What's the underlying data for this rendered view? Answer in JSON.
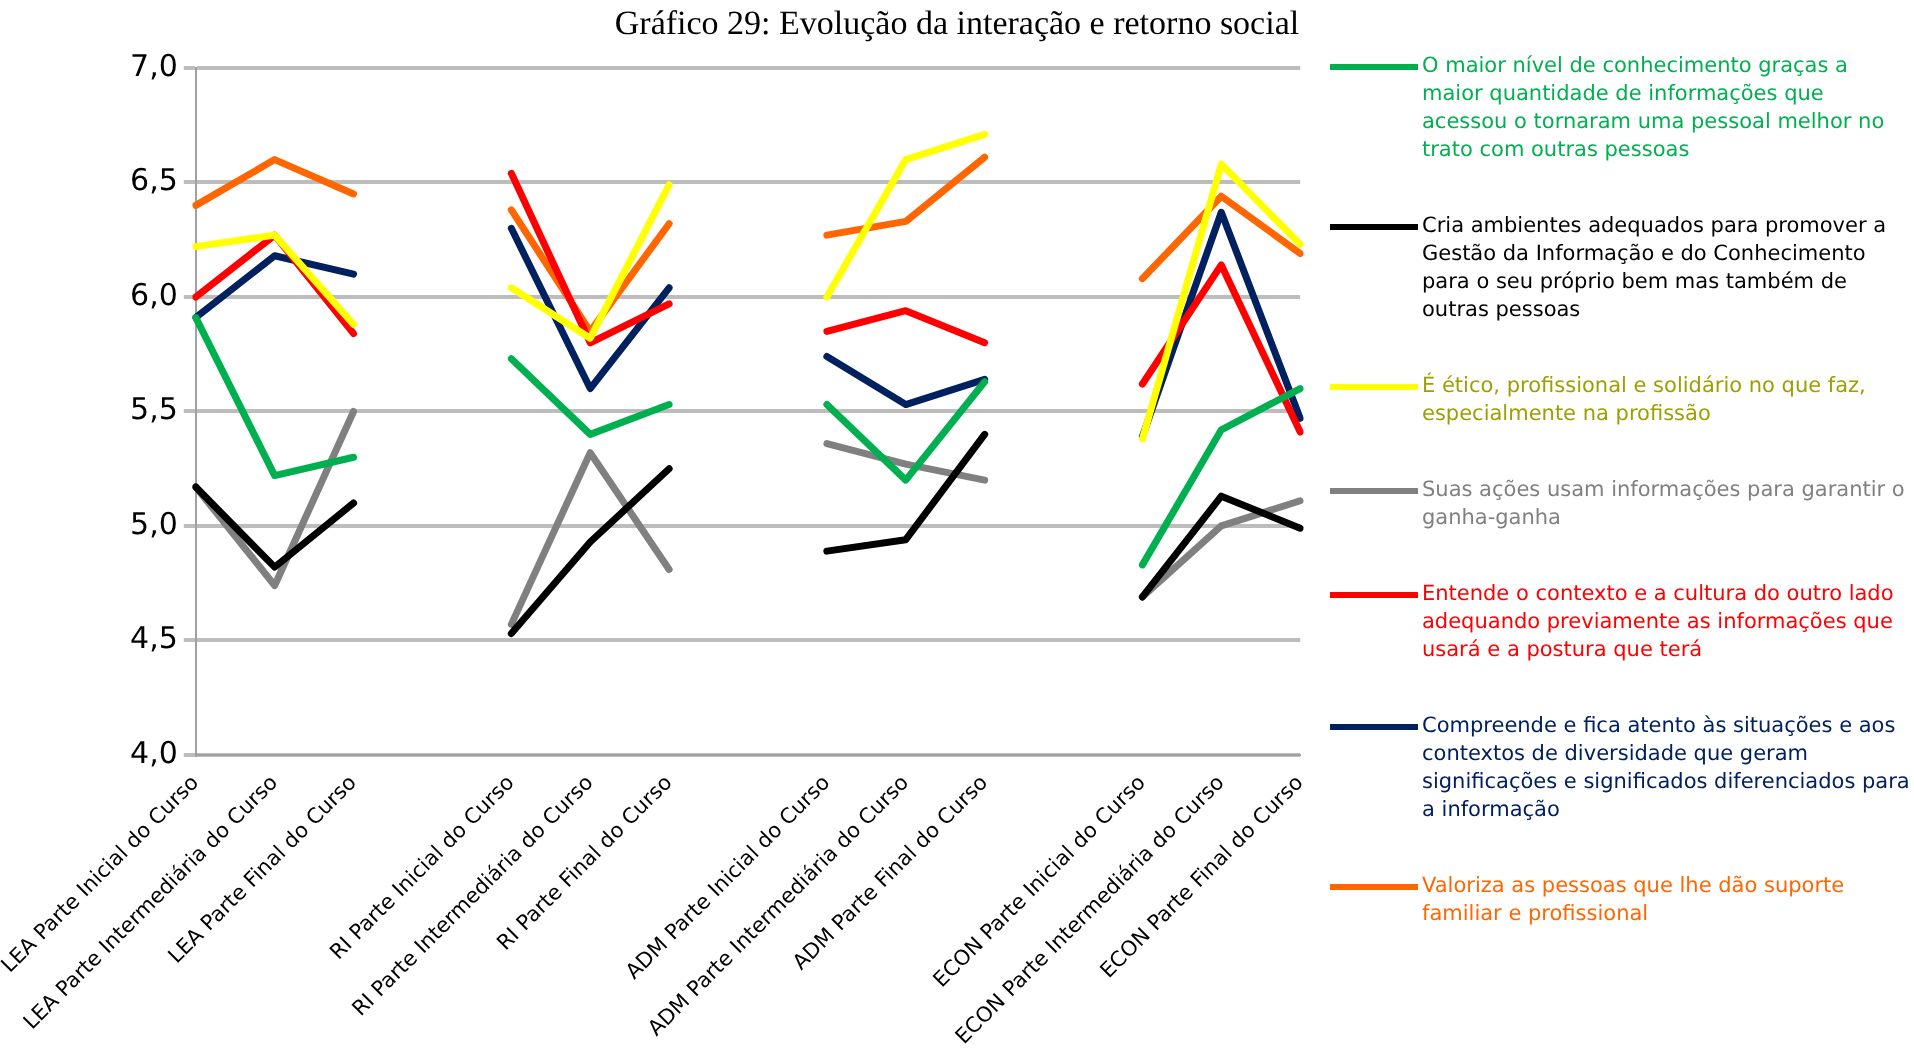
{
  "chart_data": {
    "type": "line",
    "title": "Gráfico 29: Evolução da interação e retorno social",
    "categories": [
      "LEA Parte Inicial do Curso",
      "LEA Parte Intermediária do Curso",
      "LEA Parte Final do Curso",
      null,
      "RI Parte Inicial do Curso",
      "RI Parte Intermediária do Curso",
      "RI Parte Final do Curso",
      null,
      "ADM Parte Inicial do Curso",
      "ADM Parte Intermediária do Curso",
      "ADM Parte Final do Curso",
      null,
      "ECON Parte Inicial do Curso",
      "ECON Parte Intermediária do Curso",
      "ECON Parte Final do Curso"
    ],
    "series": [
      {
        "name": "O maior nível de conhecimento graças a maior quantidade de informações que acessou o tornaram uma pessoal melhor no trato com outras pessoas",
        "color": "#00b050",
        "values": [
          5.91,
          5.22,
          5.3,
          null,
          5.73,
          5.4,
          5.53,
          null,
          5.53,
          5.2,
          5.63,
          null,
          4.83,
          5.42,
          5.6
        ]
      },
      {
        "name": "Cria ambientes adequados para promover a Gestão da Informação e do Conhecimento para o seu próprio bem mas também de outras pessoas",
        "color": "#000000",
        "values": [
          5.17,
          4.82,
          5.1,
          null,
          4.53,
          4.93,
          5.25,
          null,
          4.89,
          4.94,
          5.4,
          null,
          4.69,
          5.13,
          4.99
        ]
      },
      {
        "name": "É ético, profissional e solidário no que faz, especialmente na profissão",
        "color": "#ffff00",
        "values": [
          6.22,
          6.27,
          5.88,
          null,
          6.04,
          5.82,
          6.49,
          null,
          6.0,
          6.6,
          6.71,
          null,
          5.38,
          6.58,
          6.23
        ]
      },
      {
        "name": "Suas ações usam informações para garantir o ganha-ganha",
        "color": "#808080",
        "values": [
          5.17,
          4.74,
          5.5,
          null,
          4.57,
          5.32,
          4.81,
          null,
          5.36,
          5.27,
          5.2,
          null,
          4.69,
          5.0,
          5.11
        ]
      },
      {
        "name": "Entende o contexto e a cultura do outro lado adequando previamente as informações que usará e a postura que terá",
        "color": "#ff0000",
        "values": [
          6.0,
          6.27,
          5.84,
          null,
          6.54,
          5.8,
          5.97,
          null,
          5.85,
          5.94,
          5.8,
          null,
          5.62,
          6.14,
          5.41
        ]
      },
      {
        "name": "Compreende e fica atento às situações e aos contextos de diversidade que geram significações e significados diferenciados para a informação",
        "color": "#002060",
        "values": [
          5.91,
          6.18,
          6.1,
          null,
          6.3,
          5.6,
          6.04,
          null,
          5.74,
          5.53,
          5.64,
          null,
          5.39,
          6.37,
          5.47
        ]
      },
      {
        "name": "Valoriza as pessoas que lhe dão suporte familiar e profissional",
        "color": "#ff6600",
        "values": [
          6.4,
          6.6,
          6.45,
          null,
          6.38,
          5.85,
          6.32,
          null,
          6.27,
          6.33,
          6.61,
          null,
          6.08,
          6.44,
          6.19
        ]
      }
    ],
    "ylim": [
      4.0,
      7.0
    ],
    "yticks": [
      {
        "value": 4.0,
        "label": "4,0"
      },
      {
        "value": 4.5,
        "label": "4,5"
      },
      {
        "value": 5.0,
        "label": "5,0"
      },
      {
        "value": 5.5,
        "label": "5,5"
      },
      {
        "value": 6.0,
        "label": "6,0"
      },
      {
        "value": 6.5,
        "label": "6,5"
      },
      {
        "value": 7.0,
        "label": "7,0"
      }
    ],
    "grid": "y",
    "legend": "right",
    "marker": "none",
    "line_style": "solid"
  }
}
